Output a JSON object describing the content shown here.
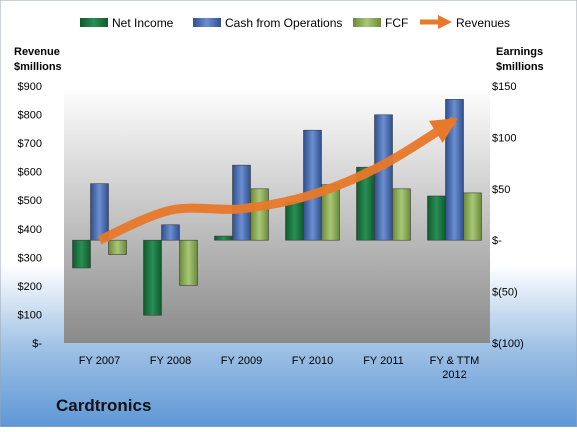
{
  "chart_data": {
    "type": "bar",
    "company": "Cardtronics",
    "categories": [
      "FY 2007",
      "FY 2008",
      "FY 2009",
      "FY 2010",
      "FY 2011",
      "FY & TTM 2012"
    ],
    "left_axis": {
      "title_line1": "Revenue",
      "title_line2": "$millions",
      "ylim": [
        0,
        900
      ],
      "ticks": [
        0,
        100,
        200,
        300,
        400,
        500,
        600,
        700,
        800,
        900
      ],
      "tick_labels": [
        "$-",
        "$100",
        "$200",
        "$300",
        "$400",
        "$500",
        "$600",
        "$700",
        "$800",
        "$900"
      ]
    },
    "right_axis": {
      "title_line1": "Earnings",
      "title_line2": "$millions",
      "ylim": [
        -100,
        150
      ],
      "ticks": [
        -100,
        -50,
        0,
        50,
        100,
        150
      ],
      "tick_labels": [
        "$(100)",
        "$(50)",
        "$-",
        "$50",
        "$100",
        "$150"
      ]
    },
    "series": [
      {
        "name": "Net Income",
        "axis": "right",
        "color": "#1f7a45",
        "values": [
          -27,
          -73,
          4,
          37,
          71,
          43
        ]
      },
      {
        "name": "Cash from Operations",
        "axis": "right",
        "color": "#4a6fb5",
        "values": [
          55,
          15,
          73,
          107,
          122,
          137
        ]
      },
      {
        "name": "FCF",
        "axis": "right",
        "color": "#8fb05a",
        "values": [
          -14,
          -44,
          50,
          54,
          50,
          46
        ]
      },
      {
        "name": "Revenues",
        "axis": "left",
        "type": "line",
        "color": "#e8782a",
        "values": [
          360,
          465,
          470,
          520,
          625,
          780
        ]
      }
    ],
    "legend_position": "top",
    "grid": false
  }
}
